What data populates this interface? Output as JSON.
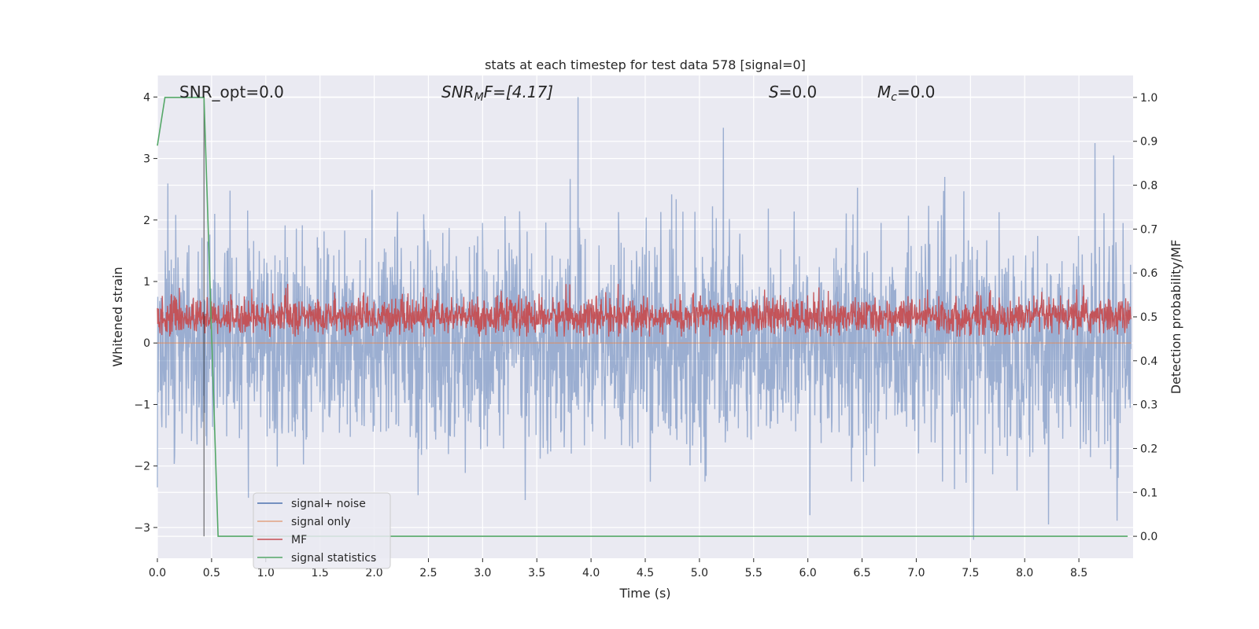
{
  "chart_data": {
    "type": "line",
    "title": "stats at each timestep for test data 578 [signal=0]",
    "xlabel": "Time (s)",
    "ylabel": "Whitened strain",
    "y2label": "Detection probability/MF",
    "xlim": [
      0.0,
      9.0
    ],
    "ylim": [
      -3.5,
      4.35
    ],
    "y2lim": [
      -0.05,
      1.05
    ],
    "x_ticks": [
      0.0,
      0.5,
      1.0,
      1.5,
      2.0,
      2.5,
      3.0,
      3.5,
      4.0,
      4.5,
      5.0,
      5.5,
      6.0,
      6.5,
      7.0,
      7.5,
      8.0,
      8.5
    ],
    "x_tick_labels": [
      "0.0",
      "0.5",
      "1.0",
      "1.5",
      "2.0",
      "2.5",
      "3.0",
      "3.5",
      "4.0",
      "4.5",
      "5.0",
      "5.5",
      "6.0",
      "6.5",
      "7.0",
      "7.5",
      "8.0",
      "8.5"
    ],
    "y_ticks": [
      -3,
      -2,
      -1,
      0,
      1,
      2,
      3,
      4
    ],
    "y_tick_labels": [
      "−3",
      "−2",
      "−1",
      "0",
      "1",
      "2",
      "3",
      "4"
    ],
    "y2_ticks": [
      0.0,
      0.1,
      0.2,
      0.3,
      0.4,
      0.5,
      0.6,
      0.7,
      0.8,
      0.9,
      1.0
    ],
    "y2_tick_labels": [
      "0.0",
      "0.1",
      "0.2",
      "0.3",
      "0.4",
      "0.5",
      "0.6",
      "0.7",
      "0.8",
      "0.9",
      "1.0"
    ],
    "grid": true,
    "legend_position": "bottom-left",
    "annotations": {
      "snr_opt": "SNR_opt=0.0",
      "snr_mf_prefix": "SNR",
      "snr_mf_sub": "M",
      "snr_mf_rest": "F=[4.17]",
      "s_label": "S",
      "s_value": "=0.0",
      "mc_label": "M",
      "mc_sub": "c",
      "mc_value": "=0.0"
    },
    "series": [
      {
        "name": "signal+ noise",
        "color": "#4c72b0",
        "axis": "left",
        "description": "whitened noise, approx Gaussian around 0 with std ~0.9, range about -3.2 to 4.0",
        "peaks": [
          {
            "x": 3.88,
            "y": 4.0
          },
          {
            "x": 5.22,
            "y": 3.5
          },
          {
            "x": 8.65,
            "y": 3.25
          },
          {
            "x": 8.82,
            "y": 3.05
          },
          {
            "x": 7.53,
            "y": -3.2
          },
          {
            "x": 8.22,
            "y": -2.95
          },
          {
            "x": 6.02,
            "y": -2.8
          }
        ]
      },
      {
        "name": "signal only",
        "color": "#dd8452",
        "axis": "left",
        "values_constant": 0.0
      },
      {
        "name": "MF",
        "color": "#c44e52",
        "axis": "right",
        "description": "matched-filter output fluctuating between about 0.45 and 0.57 on the right axis"
      },
      {
        "name": "signal statistics",
        "color": "#55a868",
        "axis": "right",
        "x": [
          0.0,
          0.07,
          0.43,
          0.56,
          8.95
        ],
        "values": [
          0.89,
          1.0,
          1.0,
          0.0,
          0.0
        ]
      }
    ],
    "vline": {
      "x": 0.43,
      "color": "#000000"
    }
  }
}
